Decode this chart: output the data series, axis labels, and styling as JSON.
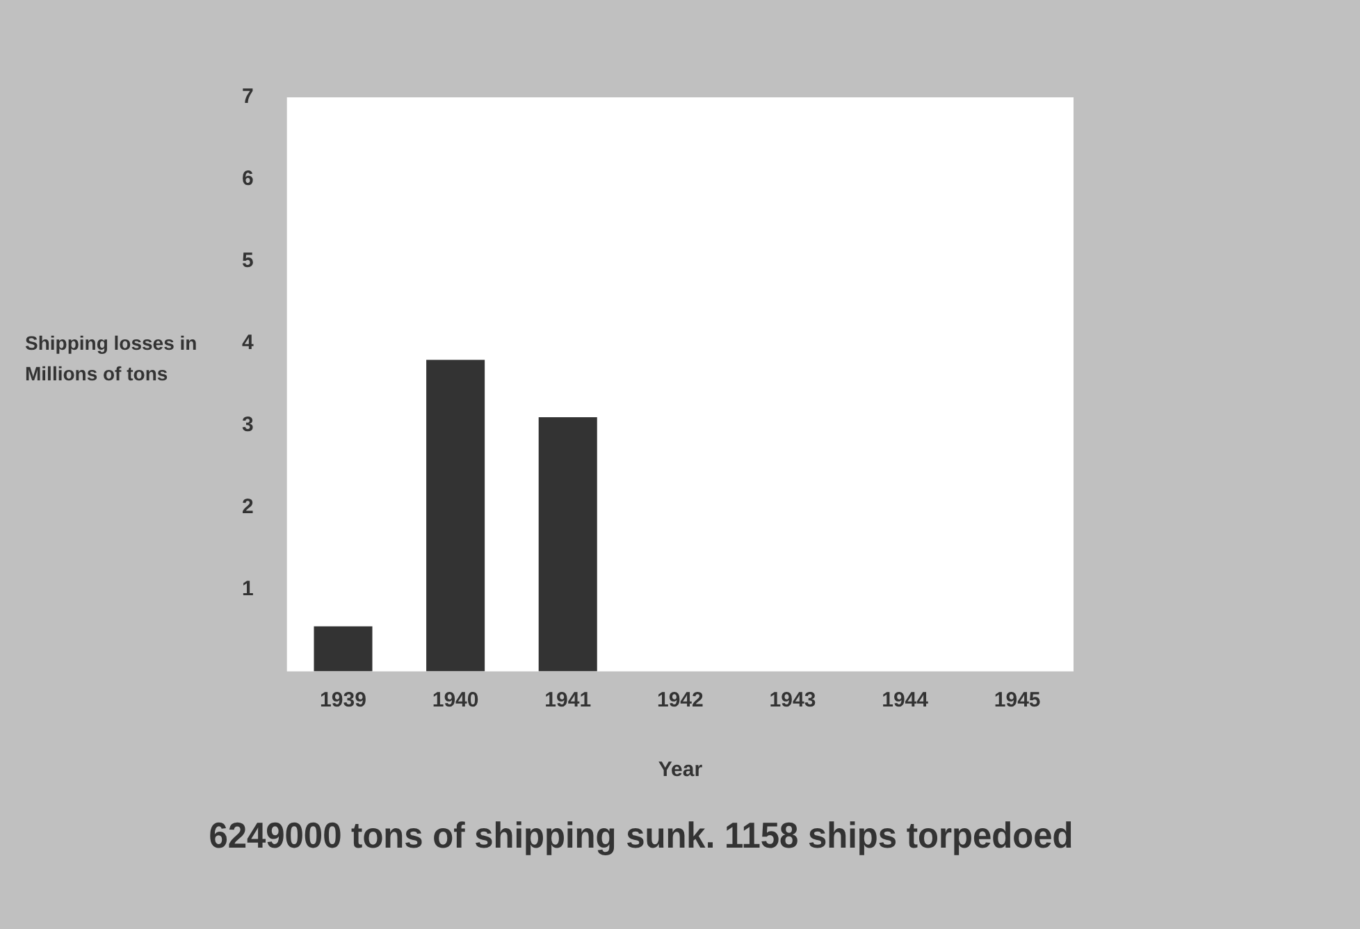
{
  "chart_data": {
    "type": "bar",
    "title": "6249000 tons of shipping sunk. 1158 ships torpedoed",
    "xlabel": "Year",
    "ylabel": "Shipping losses in Millions of tons",
    "categories": [
      "1939",
      "1940",
      "1941",
      "1942",
      "1943",
      "1944",
      "1945"
    ],
    "values": [
      0.55,
      3.8,
      3.1,
      null,
      null,
      null,
      null
    ],
    "color": "#333333",
    "ylim": [
      0,
      7
    ],
    "yticks": [
      1,
      2,
      3,
      4,
      5,
      6,
      7
    ],
    "grid": false,
    "legend": false
  }
}
